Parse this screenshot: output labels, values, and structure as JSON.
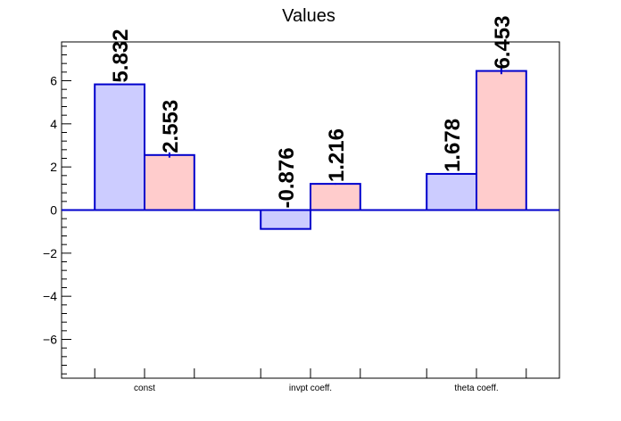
{
  "chart_data": {
    "type": "bar",
    "title": "Values",
    "categories": [
      "const",
      "invpt coeff.",
      "theta coeff."
    ],
    "series": [
      {
        "values": [
          5.832,
          -0.876,
          1.678
        ],
        "errors": [
          0,
          0,
          0
        ]
      },
      {
        "values": [
          2.553,
          1.216,
          6.453
        ],
        "errors": [
          0.12,
          0.04,
          0.15
        ]
      }
    ],
    "value_labels": [
      [
        "5.832",
        "-0.876",
        "1.678"
      ],
      [
        "2.553",
        "1.216",
        "6.453"
      ]
    ],
    "ylim": [
      -7.8,
      7.8
    ],
    "yticks": [
      -6,
      -4,
      -2,
      0,
      2,
      4,
      6
    ],
    "ytick_labels": [
      "−6",
      "−4",
      "−2",
      "0",
      "2",
      "4",
      "6"
    ],
    "grid": false,
    "colors": {
      "series_fill": [
        "#ccccff",
        "#ffcccc"
      ],
      "bar_edge": "#0000cc",
      "zero_line": "#0000cc",
      "axis": "#000000"
    }
  }
}
